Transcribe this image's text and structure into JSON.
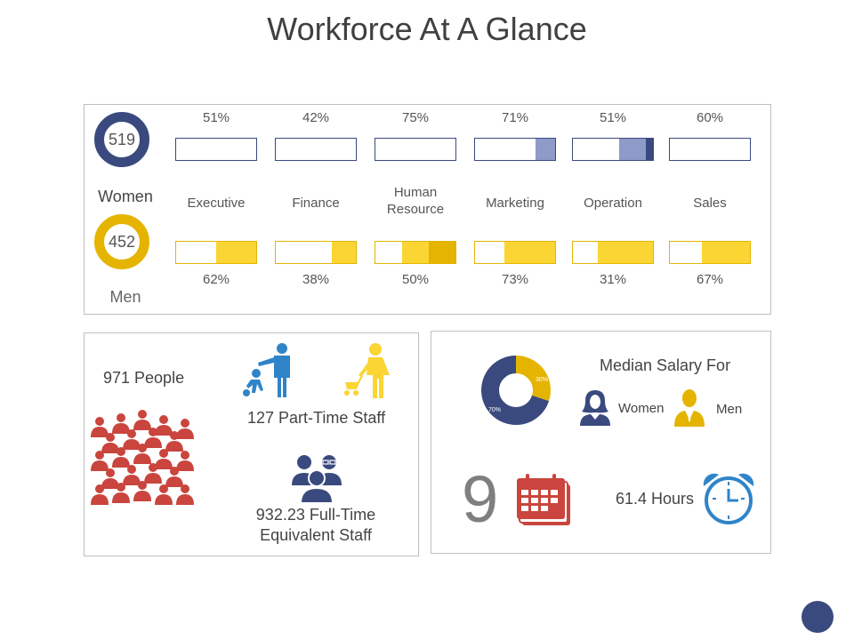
{
  "title": "Workforce At A Glance",
  "colors": {
    "navy": "#3a4a7e",
    "lavender": "#8e9ac8",
    "yellow": "#fbd533",
    "gold": "#e4b400",
    "red": "#c9453e",
    "blue": "#2f84c8"
  },
  "gender": {
    "women": {
      "count": "519",
      "label": "Women"
    },
    "men": {
      "count": "452",
      "label": "Men"
    }
  },
  "departments": [
    {
      "name": "Executive",
      "women_pct": "51%",
      "men_pct": "62%",
      "women_fill": 0.0,
      "men_fill": 0.5
    },
    {
      "name": "Finance",
      "women_pct": "42%",
      "men_pct": "38%",
      "women_fill": 0.0,
      "men_fill": 0.3
    },
    {
      "name": "Human\nResource",
      "women_pct": "75%",
      "men_pct": "50%",
      "women_fill": 0.0,
      "men_fill": 0.33
    },
    {
      "name": "Marketing",
      "women_pct": "71%",
      "men_pct": "73%",
      "women_fill": 0.24,
      "men_fill": 0.63
    },
    {
      "name": "Operation",
      "women_pct": "51%",
      "men_pct": "31%",
      "women_fill": 0.33,
      "men_fill": 0.69
    },
    {
      "name": "Sales",
      "women_pct": "60%",
      "men_pct": "67%",
      "women_fill": 0.0,
      "men_fill": 0.6
    }
  ],
  "people": {
    "total_label": "971 People",
    "part_time_label": "127 Part-Time Staff",
    "fte_line1": "932.23 Full-Time",
    "fte_line2": "Equivalent Staff",
    "icons": [
      "crowd-icon",
      "parent-child-icon",
      "mother-stroller-icon",
      "team-icon"
    ]
  },
  "salary": {
    "heading": "Median Salary For",
    "women_label": "Women",
    "men_label": "Men",
    "donut": {
      "women_pct": 70,
      "men_pct": 30,
      "women_text": "70%",
      "men_text": "30%"
    },
    "days": "9",
    "hours": "61.4 Hours",
    "icons": [
      "calendar-icon",
      "alarm-clock-icon",
      "woman-icon",
      "man-icon"
    ]
  }
}
